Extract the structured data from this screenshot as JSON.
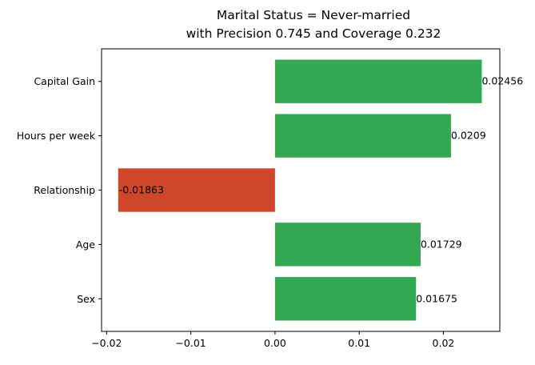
{
  "chart_data": {
    "type": "bar",
    "orientation": "horizontal",
    "title_lines": [
      "Marital Status = Never-married",
      "with Precision 0.745 and Coverage 0.232"
    ],
    "categories": [
      "Capital Gain",
      "Hours per week",
      "Relationship",
      "Age",
      "Sex"
    ],
    "values": [
      0.02456,
      0.0209,
      -0.01863,
      0.01729,
      0.01675
    ],
    "value_labels": [
      "0.02456",
      "0.0209",
      "-0.01863",
      "0.01729",
      "0.01675"
    ],
    "xlim": [
      -0.0206,
      0.0267
    ],
    "xticks": [
      -0.02,
      -0.01,
      0.0,
      0.01,
      0.02
    ],
    "xtick_labels": [
      "−0.02",
      "−0.01",
      "0.00",
      "0.01",
      "0.02"
    ],
    "colors": {
      "positive": "#32a852",
      "negative": "#d0462a"
    },
    "grid": false
  }
}
